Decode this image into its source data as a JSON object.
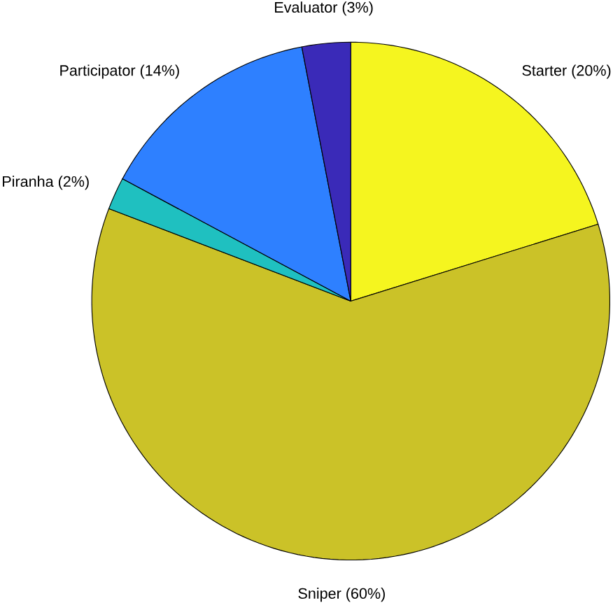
{
  "chart_data": {
    "type": "pie",
    "categories": [
      "Starter (20%)",
      "Sniper (60%)",
      "Piranha (2%)",
      "Participator (14%)",
      "Evaluator (3%)"
    ],
    "values": [
      20,
      60,
      2,
      14,
      3
    ],
    "colors": [
      "#f5f51f",
      "#cbc228",
      "#1fc0c0",
      "#2e80ff",
      "#3a2ab8"
    ]
  }
}
